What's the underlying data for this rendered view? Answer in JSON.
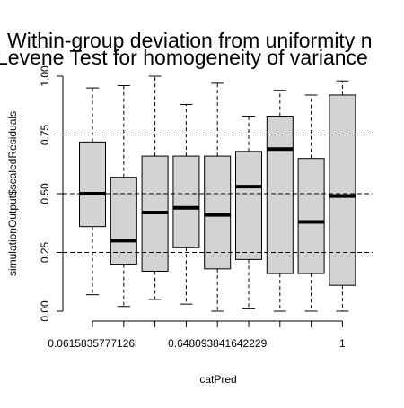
{
  "chart_data": {
    "type": "boxplot",
    "title_lines": [
      "Within-group deviation from uniformity n",
      "Levene Test for homogeneity of variance"
    ],
    "xlabel": "catPred",
    "ylabel": "simulationOutput$scaledResiduals",
    "ylim": [
      0,
      1
    ],
    "y_ticks": [
      0.0,
      0.25,
      0.5,
      0.75,
      1.0
    ],
    "y_tick_labels": [
      "0.00",
      "0.25",
      "0.50",
      "0.75",
      "1.00"
    ],
    "x_tick_labels_shown": [
      {
        "index": 0,
        "label": "0.0615835777126l"
      },
      {
        "index": 4,
        "label": "0.648093841642229"
      },
      {
        "index": 8,
        "label": "1"
      }
    ],
    "reference_lines": [
      0.25,
      0.5,
      0.75
    ],
    "box_fill": "#d3d3d3",
    "boxes": [
      {
        "whisker_low": 0.07,
        "q1": 0.36,
        "median": 0.5,
        "q3": 0.72,
        "whisker_high": 0.95
      },
      {
        "whisker_low": 0.02,
        "q1": 0.2,
        "median": 0.3,
        "q3": 0.57,
        "whisker_high": 0.96
      },
      {
        "whisker_low": 0.05,
        "q1": 0.17,
        "median": 0.42,
        "q3": 0.66,
        "whisker_high": 1.0
      },
      {
        "whisker_low": 0.03,
        "q1": 0.27,
        "median": 0.44,
        "q3": 0.66,
        "whisker_high": 0.88
      },
      {
        "whisker_low": 0.0,
        "q1": 0.18,
        "median": 0.41,
        "q3": 0.66,
        "whisker_high": 0.97
      },
      {
        "whisker_low": 0.01,
        "q1": 0.22,
        "median": 0.53,
        "q3": 0.68,
        "whisker_high": 0.83
      },
      {
        "whisker_low": 0.0,
        "q1": 0.16,
        "median": 0.69,
        "q3": 0.83,
        "whisker_high": 0.94
      },
      {
        "whisker_low": 0.0,
        "q1": 0.16,
        "median": 0.38,
        "q3": 0.65,
        "whisker_high": 0.92
      },
      {
        "whisker_low": 0.0,
        "q1": 0.11,
        "median": 0.49,
        "q3": 0.92,
        "whisker_high": 0.98
      }
    ]
  }
}
